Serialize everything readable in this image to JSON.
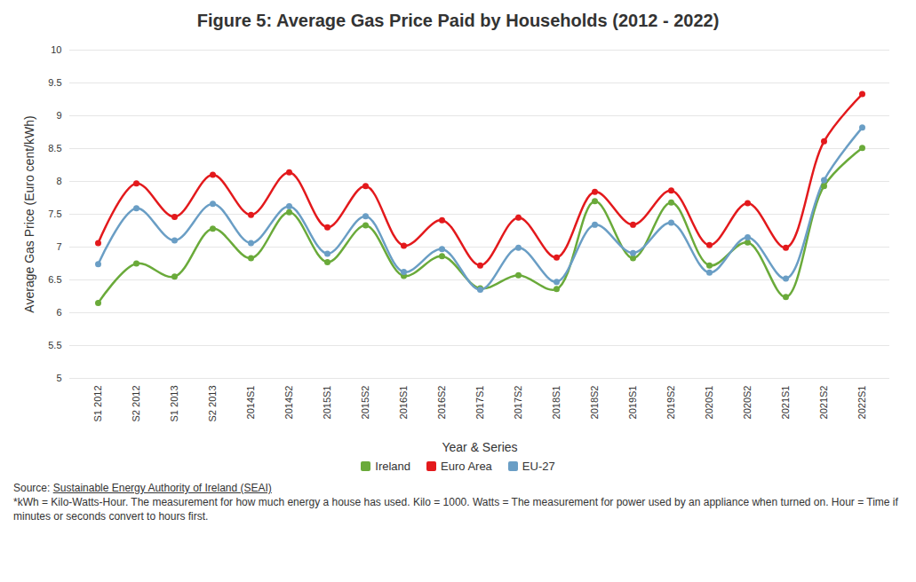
{
  "chart_data": {
    "type": "line",
    "title": "Figure 5: Average Gas Price Paid by Households (2012 - 2022)",
    "x_label": "Year & Series",
    "y_label": "Average Gas Price (Euro cent/kWh)",
    "categories": [
      "S1 2012",
      "S2 2012",
      "S1 2013",
      "S2 2013",
      "2014S1",
      "2014S2",
      "2015S1",
      "2015S2",
      "2016S1",
      "2016S2",
      "2017S1",
      "2017S2",
      "2018S1",
      "2018S2",
      "2019S1",
      "2019S2",
      "2020S1",
      "2020S2",
      "2021S1",
      "2021S2",
      "2022S1"
    ],
    "series": [
      {
        "name": "Ireland",
        "color": "#6aaa3a",
        "values": [
          6.15,
          6.75,
          6.55,
          7.28,
          6.83,
          7.53,
          6.77,
          7.33,
          6.56,
          6.86,
          6.37,
          6.57,
          6.36,
          7.7,
          6.83,
          7.68,
          6.72,
          7.07,
          6.24,
          7.93,
          8.51
        ]
      },
      {
        "name": "Euro Area",
        "color": "#e3191c",
        "values": [
          7.06,
          7.97,
          7.46,
          8.1,
          7.49,
          8.14,
          7.3,
          7.93,
          7.02,
          7.41,
          6.72,
          7.45,
          6.84,
          7.84,
          7.34,
          7.86,
          7.03,
          7.67,
          6.99,
          8.61,
          9.33
        ]
      },
      {
        "name": "EU-27",
        "color": "#6a9ec5",
        "values": [
          6.74,
          7.59,
          7.1,
          7.66,
          7.06,
          7.62,
          6.9,
          7.47,
          6.62,
          6.97,
          6.35,
          6.99,
          6.47,
          7.34,
          6.91,
          7.37,
          6.61,
          7.15,
          6.52,
          8.02,
          8.82
        ]
      }
    ],
    "ylim": [
      5,
      10
    ],
    "yticks": [
      5,
      5.5,
      6,
      6.5,
      7,
      7.5,
      8,
      8.5,
      9,
      9.5,
      10
    ],
    "grid": true,
    "marker": "circle",
    "legend": "bottom",
    "source_label": "Source:",
    "source": "Sustainable Energy Authority of Ireland (SEAI)",
    "footnote": "*kWh = Kilo-Watts-Hour. The measurement for how much energy a house has used. Kilo = 1000. Watts = The measurement for power used by an appliance when turned on. Hour = Time if minutes or seconds convert to hours first."
  }
}
